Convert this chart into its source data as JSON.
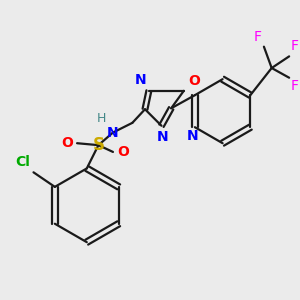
{
  "background_color": "#ebebeb",
  "bond_color": "#1a1a1a",
  "bond_width": 1.6,
  "dbo": 0.012,
  "figsize": [
    3.0,
    3.0
  ],
  "dpi": 100,
  "colors": {
    "N": "#0000ff",
    "O": "#ff0000",
    "S": "#ccaa00",
    "Cl": "#00aa00",
    "F": "#ff00ff",
    "H": "#448888",
    "C": "#1a1a1a"
  }
}
